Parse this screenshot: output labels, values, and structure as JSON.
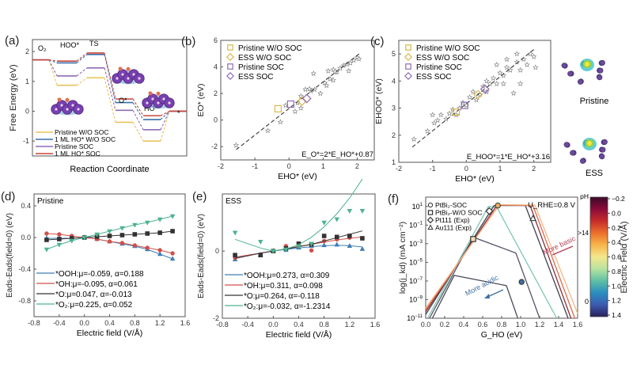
{
  "figure": {
    "panel_labels": [
      "(a)",
      "(b)",
      "(c)",
      "(d)",
      "(e)",
      "(f)"
    ],
    "structures": {
      "top_label": "Pristine",
      "bottom_label": "ESS"
    }
  },
  "chart_data": [
    {
      "id": "a",
      "type": "line",
      "title": "",
      "xlabel": "Reaction Coordinate",
      "ylabel": "Free Energy (eV)",
      "ylim": [
        -1.5,
        2.4
      ],
      "yticks": [
        -1,
        0,
        1,
        2
      ],
      "step_labels": [
        "O₂",
        "HOO*",
        "TS",
        "O*",
        "HO*",
        "*"
      ],
      "series": [
        {
          "name": "Pristine W/O SOC",
          "color": "#e8c35a",
          "values": [
            1.72,
            0.87,
            1.12,
            -0.37,
            -1.0,
            0.0
          ]
        },
        {
          "name": "1 ML HO* W/O SOC",
          "color": "#3b6fa8",
          "values": [
            1.72,
            1.62,
            1.9,
            0.29,
            -0.28,
            0.0
          ]
        },
        {
          "name": "Pristine SOC",
          "color": "#8e6bb5",
          "values": [
            1.72,
            1.18,
            1.45,
            0.03,
            -0.62,
            0.0
          ]
        },
        {
          "name": "1 ML HO* SOC",
          "color": "#c8463c",
          "values": [
            1.72,
            1.68,
            1.95,
            0.41,
            -0.15,
            0.0
          ]
        }
      ]
    },
    {
      "id": "b",
      "type": "scatter",
      "xlabel": "E_HO* (eV)",
      "ylabel": "E_O* (eV)",
      "xlim": [
        -2,
        2.5
      ],
      "ylim": [
        -3,
        6
      ],
      "xticks": [
        -2,
        -1,
        0,
        1,
        2
      ],
      "yticks": [
        -2,
        0,
        2,
        4,
        6
      ],
      "equation": "E_O*=2*E_HO*+0.87",
      "fit": {
        "slope": 2,
        "intercept": 0.87,
        "x_range": [
          -1.55,
          2.1
        ]
      },
      "legend": [
        {
          "name": "Pristine W/O SOC",
          "marker": "square",
          "color": "#d9b84a",
          "x": -0.32,
          "y": 0.85
        },
        {
          "name": "ESS W/O SOC",
          "marker": "diamond",
          "color": "#d9b84a",
          "x": 0.38,
          "y": 1.42
        },
        {
          "name": "Pristine SOC",
          "marker": "square",
          "color": "#8e6bb5",
          "x": 0.05,
          "y": 1.2
        },
        {
          "name": "ESS SOC",
          "marker": "diamond",
          "color": "#8e6bb5",
          "x": 0.52,
          "y": 1.62
        }
      ],
      "stars": [
        [
          -1.55,
          -1.9
        ],
        [
          -0.62,
          -0.8
        ],
        [
          -0.25,
          -0.15
        ],
        [
          -0.1,
          1.1
        ],
        [
          0.18,
          0.65
        ],
        [
          0.25,
          1.3
        ],
        [
          0.35,
          0.9
        ],
        [
          0.35,
          1.8
        ],
        [
          0.48,
          2.3
        ],
        [
          0.65,
          2.2
        ],
        [
          0.72,
          3.5
        ],
        [
          0.75,
          2.3
        ],
        [
          0.92,
          2.0
        ],
        [
          1.05,
          2.8
        ],
        [
          1.1,
          2.6
        ],
        [
          1.15,
          3.7
        ],
        [
          1.2,
          3.1
        ],
        [
          1.3,
          3.8
        ],
        [
          1.3,
          3.0
        ],
        [
          1.4,
          3.6
        ],
        [
          1.5,
          3.9
        ],
        [
          1.6,
          4.1
        ],
        [
          1.7,
          4.2
        ],
        [
          1.75,
          3.7
        ],
        [
          1.8,
          4.3
        ],
        [
          1.9,
          4.5
        ],
        [
          2.0,
          4.7
        ],
        [
          2.05,
          4.6
        ],
        [
          0.6,
          2.35
        ],
        [
          1.35,
          3.65
        ]
      ]
    },
    {
      "id": "c",
      "type": "scatter",
      "xlabel": "E_HO* (eV)",
      "ylabel": "E_HOO* (eV)",
      "xlim": [
        -2,
        2.5
      ],
      "ylim": [
        1,
        5.5
      ],
      "xticks": [
        -2,
        -1,
        0,
        1,
        2
      ],
      "yticks": [
        1,
        2,
        3,
        4,
        5
      ],
      "equation": "E_HOO*=1*E_HO*+3.16",
      "fit": {
        "slope": 1,
        "intercept": 3.16,
        "x_range": [
          -1.6,
          2.0
        ]
      },
      "legend": [
        {
          "name": "Pristine W/O SOC",
          "marker": "square",
          "color": "#d9b84a",
          "x": -0.3,
          "y": 2.85
        },
        {
          "name": "ESS W/O SOC",
          "marker": "diamond",
          "color": "#d9b84a",
          "x": 0.35,
          "y": 3.5
        },
        {
          "name": "Pristine SOC",
          "marker": "square",
          "color": "#8e6bb5",
          "x": -0.05,
          "y": 3.1
        },
        {
          "name": "ESS SOC",
          "marker": "diamond",
          "color": "#8e6bb5",
          "x": 0.55,
          "y": 3.7
        }
      ],
      "stars": [
        [
          -1.55,
          1.85
        ],
        [
          -1.15,
          2.15
        ],
        [
          -1.0,
          2.75
        ],
        [
          -0.95,
          2.45
        ],
        [
          -0.85,
          2.55
        ],
        [
          -0.75,
          2.75
        ],
        [
          -0.6,
          2.6
        ],
        [
          -0.5,
          2.8
        ],
        [
          -0.4,
          2.95
        ],
        [
          -0.3,
          2.75
        ],
        [
          -0.2,
          3.0
        ],
        [
          -0.1,
          3.2
        ],
        [
          0.0,
          3.1
        ],
        [
          0.1,
          3.4
        ],
        [
          0.2,
          3.6
        ],
        [
          0.3,
          3.3
        ],
        [
          0.4,
          3.5
        ],
        [
          0.5,
          3.8
        ],
        [
          0.6,
          3.6
        ],
        [
          0.7,
          3.9
        ],
        [
          0.8,
          4.1
        ],
        [
          0.9,
          3.9
        ],
        [
          1.0,
          4.3
        ],
        [
          1.1,
          4.2
        ],
        [
          1.2,
          4.5
        ],
        [
          1.3,
          4.4
        ],
        [
          1.4,
          3.55
        ],
        [
          1.5,
          4.7
        ],
        [
          1.6,
          4.4
        ],
        [
          1.7,
          4.8
        ],
        [
          1.8,
          4.6
        ],
        [
          1.9,
          5.0
        ],
        [
          2.0,
          4.9
        ],
        [
          2.05,
          4.5
        ],
        [
          1.5,
          5.0
        ],
        [
          1.2,
          4.8
        ],
        [
          0.6,
          4.0
        ],
        [
          0.9,
          4.6
        ],
        [
          1.1,
          3.9
        ],
        [
          1.6,
          3.9
        ]
      ]
    },
    {
      "id": "d",
      "type": "line",
      "inset_title": "Pristine",
      "xlabel": "Electric field (V/Å)",
      "ylabel": "E_ads-E_ads(field=0) (eV)",
      "xlim": [
        -0.8,
        1.6
      ],
      "ylim": [
        -1.0,
        0.55
      ],
      "xticks": [
        -0.8,
        -0.4,
        0.0,
        0.4,
        0.8,
        1.2,
        1.6
      ],
      "yticks": [
        -0.8,
        -0.4,
        0.0,
        0.4
      ],
      "x": [
        -0.6,
        -0.4,
        -0.2,
        0.0,
        0.2,
        0.4,
        0.6,
        0.8,
        1.0,
        1.2,
        1.4
      ],
      "series": [
        {
          "name": "*OOH:μ=-0.059, α=0.188",
          "color": "#3f7fb5",
          "marker": "triangle",
          "values": [
            -0.01,
            -0.01,
            -0.01,
            0.0,
            -0.02,
            -0.05,
            -0.08,
            -0.11,
            -0.15,
            -0.21,
            -0.27
          ]
        },
        {
          "name": "*OH:μ=-0.095, α=0.061",
          "color": "#d0504a",
          "marker": "circle",
          "values": [
            0.05,
            0.04,
            0.02,
            0.0,
            -0.02,
            -0.05,
            -0.07,
            -0.1,
            -0.13,
            -0.16,
            -0.2
          ]
        },
        {
          "name": "*O:μ=0.047, α=-0.013",
          "color": "#333333",
          "marker": "square",
          "values": [
            -0.03,
            -0.02,
            -0.01,
            0.0,
            0.01,
            0.02,
            0.03,
            0.04,
            0.05,
            0.06,
            0.08
          ]
        },
        {
          "name": "*O₂:μ=0.225, α=0.052",
          "color": "#4cb38f",
          "marker": "triangle-down",
          "values": [
            -0.15,
            -0.09,
            -0.04,
            0.0,
            0.04,
            0.08,
            0.12,
            0.16,
            0.19,
            0.23,
            0.27
          ]
        }
      ]
    },
    {
      "id": "e",
      "type": "line",
      "inset_title": "ESS",
      "xlabel": "Electric field (V/Å)",
      "ylabel": "E_ads-E_ads(field=0) (eV)",
      "xlim": [
        -0.8,
        1.6
      ],
      "ylim": [
        -2.0,
        1.7
      ],
      "xticks": [
        -0.8,
        -0.4,
        0.0,
        0.4,
        0.8,
        1.2,
        1.6
      ],
      "yticks": [
        -2,
        0
      ],
      "x": [
        -0.6,
        -0.2,
        0.0,
        0.2,
        0.4,
        0.6,
        0.8,
        1.0,
        1.2,
        1.4
      ],
      "series": [
        {
          "name": "*OOH:μ=0.273, α=0.309",
          "color": "#3f7fb5",
          "marker": "triangle",
          "values": [
            -0.25,
            -0.12,
            0.0,
            0.03,
            0.1,
            0.15,
            0.17,
            0.19,
            0.15,
            0.06
          ],
          "fit": [
            -0.2,
            -0.06,
            0.0,
            0.05,
            0.09,
            0.13,
            0.16,
            0.17,
            0.16,
            0.12
          ]
        },
        {
          "name": "*OH:μ=0.311, α=0.098",
          "color": "#d0504a",
          "marker": "circle",
          "values": [
            -0.2,
            -0.1,
            0.0,
            0.15,
            0.2,
            0.02,
            0.3,
            0.35,
            0.4,
            0.38
          ],
          "fit": [
            -0.18,
            -0.06,
            0.0,
            0.07,
            0.14,
            0.2,
            0.27,
            0.33,
            0.38,
            0.42
          ]
        },
        {
          "name": "*O:μ=0.264, α=-0.118",
          "color": "#333333",
          "marker": "square",
          "values": [
            -0.12,
            -0.12,
            0.0,
            0.08,
            0.22,
            0.2,
            0.45,
            0.42,
            0.45,
            0.38
          ],
          "fit": [
            -0.22,
            -0.06,
            0.0,
            0.06,
            0.13,
            0.2,
            0.3,
            0.4,
            0.5,
            0.6
          ]
        },
        {
          "name": "*O₂:μ=-0.032, α=-1.2314",
          "color": "#4cb38f",
          "marker": "triangle-down",
          "values": [
            0.55,
            0.28,
            0.0,
            0.05,
            0.15,
            0.22,
            0.85,
            0.95,
            1.2,
            1.2
          ],
          "fit": [
            0.35,
            0.09,
            0.0,
            0.06,
            0.19,
            0.41,
            0.72,
            1.11,
            1.58,
            2.14
          ]
        }
      ]
    },
    {
      "id": "f",
      "type": "line",
      "xlabel": "G_HO (eV)",
      "ylabel": "log(j_kd) (mA cm⁻²)",
      "xlim": [
        0.0,
        1.6
      ],
      "ylim_log10": [
        -11,
        2
      ],
      "xticks": [
        0.0,
        0.2,
        0.4,
        0.6,
        0.8,
        1.0,
        1.2,
        1.4,
        1.6
      ],
      "ytick_exponents": [
        1,
        -1,
        -3,
        -5,
        -7,
        -9,
        -11
      ],
      "annotation_potential": "U_RHE=0.8 V",
      "annotations": [
        "More acidic",
        "More basic"
      ],
      "legend": [
        {
          "name": "PtBi₂-SOC",
          "marker": "circle"
        },
        {
          "name": "PtBi₂-W/O SOC",
          "marker": "square"
        },
        {
          "name": "Pt111 (Exp)",
          "marker": "diamond"
        },
        {
          "name": "Au111 (Exp)",
          "marker": "triangle"
        }
      ],
      "curves": [
        {
          "color": "#4a4a5a",
          "points": [
            [
              0.07,
              -11
            ],
            [
              0.3,
              -6.4
            ],
            [
              0.85,
              -7.5
            ],
            [
              0.97,
              -11
            ]
          ]
        },
        {
          "color": "#555566",
          "points": [
            [
              0.04,
              -11
            ],
            [
              0.5,
              -2.3
            ],
            [
              0.95,
              -4
            ],
            [
              1.2,
              -11
            ]
          ]
        },
        {
          "color": "#7fc7b5",
          "points": [
            [
              0.02,
              -11
            ],
            [
              0.66,
              1.0
            ],
            [
              0.75,
              0.9
            ],
            [
              1.38,
              -11
            ]
          ]
        },
        {
          "color": "#3f3f4f",
          "points": [
            [
              0.0,
              -10.6
            ],
            [
              0.72,
              1.1
            ],
            [
              1.05,
              1.1
            ],
            [
              1.5,
              -11
            ]
          ]
        },
        {
          "color": "#8a2e3a",
          "points": [
            [
              0.0,
              -10.3
            ],
            [
              0.75,
              1.15
            ],
            [
              1.1,
              1.1
            ],
            [
              1.53,
              -11
            ]
          ]
        },
        {
          "color": "#e06a4a",
          "points": [
            [
              0.0,
              -10.1
            ],
            [
              0.77,
              1.15
            ],
            [
              1.13,
              1.1
            ],
            [
              1.57,
              -11
            ]
          ]
        },
        {
          "color": "#f3b98a",
          "points": [
            [
              0.0,
              -9.9
            ],
            [
              0.78,
              1.2
            ],
            [
              1.15,
              1.15
            ],
            [
              1.6,
              -10.5
            ]
          ]
        }
      ],
      "markers": [
        {
          "type": "diamond",
          "x": 0.67,
          "y": 0.5,
          "color": "#ffffff"
        },
        {
          "type": "circle",
          "x": 0.76,
          "y": 1.1,
          "color": "#e8b060"
        },
        {
          "type": "square",
          "x": 0.5,
          "y": -2.5,
          "color": "#f6dcb0"
        },
        {
          "type": "triangle",
          "x": 1.13,
          "y": -0.3,
          "color": "#ffffff"
        },
        {
          "type": "circle",
          "x": 1.01,
          "y": -7.1,
          "color": "#3f6fa0"
        }
      ],
      "colorbar": {
        "label": "Electric Field (V/Å)",
        "range": [
          -0.2,
          1.4
        ],
        "ticks": [
          -0.2,
          0.0,
          0.2,
          0.4,
          0.6,
          0.8,
          1.0,
          1.2,
          1.4
        ],
        "ph_label": "pH",
        "ph_ticks": [
          ">14",
          "0"
        ],
        "colors": [
          "#3a0a2a",
          "#8a0b3a",
          "#c72c2a",
          "#ec6f2c",
          "#f7b64a",
          "#f4e68c",
          "#b7e3a0",
          "#5fc0a4",
          "#2a8ec0",
          "#3c5bb0",
          "#2a1f5a"
        ]
      }
    }
  ]
}
